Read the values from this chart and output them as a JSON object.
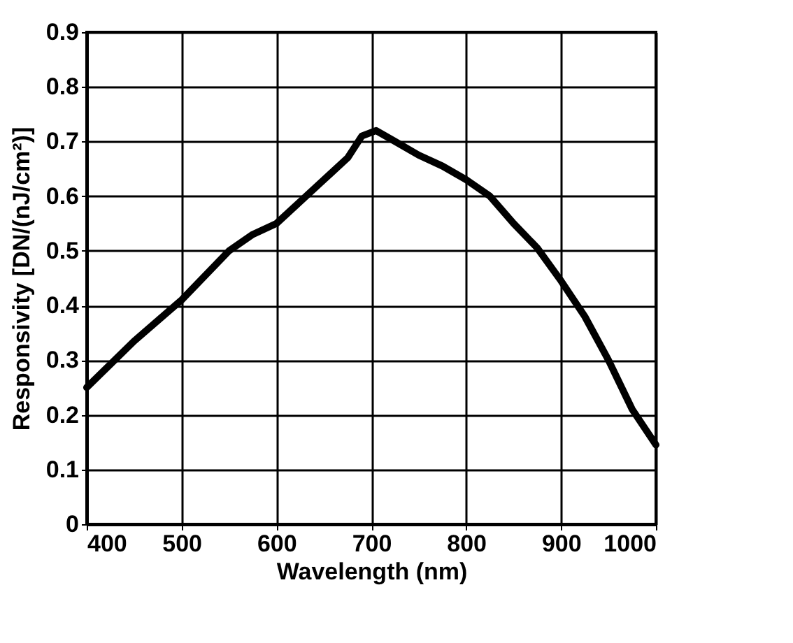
{
  "chart_data": {
    "type": "line",
    "xlabel": "Wavelength (nm)",
    "ylabel": "Responsivity [DN/(nJ/cm²)]",
    "x": [
      400,
      450,
      500,
      550,
      575,
      600,
      650,
      675,
      690,
      705,
      725,
      750,
      775,
      800,
      825,
      850,
      875,
      900,
      925,
      950,
      975,
      1000
    ],
    "series": [
      {
        "color": "#000000",
        "values": [
          0.25,
          0.335,
          0.41,
          0.5,
          0.53,
          0.55,
          0.63,
          0.67,
          0.71,
          0.72,
          0.7,
          0.675,
          0.655,
          0.63,
          0.6,
          0.55,
          0.505,
          0.445,
          0.38,
          0.3,
          0.21,
          0.145
        ]
      }
    ],
    "xlim": [
      400,
      1000
    ],
    "xticks": [
      400,
      500,
      600,
      700,
      800,
      900,
      1000
    ],
    "ylim": [
      0,
      0.9
    ],
    "yticks": [
      0,
      0.1,
      0.2,
      0.3,
      0.4,
      0.5,
      0.6,
      0.7,
      0.8,
      0.9
    ],
    "grid": true,
    "marker": "none",
    "line_style": "solid"
  }
}
